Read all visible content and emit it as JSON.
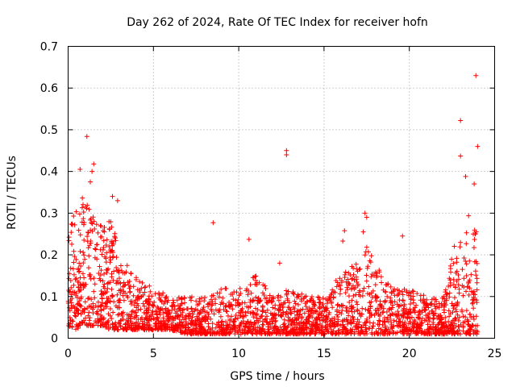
{
  "chart_data": {
    "type": "scatter",
    "title": "Day 262 of 2024, Rate Of TEC Index for receiver hofn",
    "xlabel": "GPS time / hours",
    "ylabel": "ROTI / TECUs",
    "xlim": [
      0,
      25
    ],
    "ylim": [
      0,
      0.7
    ],
    "xticks": [
      "0",
      "5",
      "10",
      "15",
      "20",
      "25"
    ],
    "yticks": [
      "0",
      "0.1",
      "0.2",
      "0.3",
      "0.4",
      "0.5",
      "0.6",
      "0.7"
    ],
    "grid": true,
    "marker": "+",
    "marker_color": "#ff0000",
    "series": [
      {
        "name": "ROTI",
        "note": "dense cloud of several thousand points; typical (x hours, ROTI) envelope and notable outliers",
        "envelope": [
          {
            "x": 0.0,
            "low": 0.03,
            "high": 0.25
          },
          {
            "x": 0.5,
            "low": 0.02,
            "high": 0.32
          },
          {
            "x": 1.0,
            "low": 0.03,
            "high": 0.35
          },
          {
            "x": 1.5,
            "low": 0.03,
            "high": 0.3
          },
          {
            "x": 2.0,
            "low": 0.03,
            "high": 0.28
          },
          {
            "x": 2.5,
            "low": 0.02,
            "high": 0.3
          },
          {
            "x": 3.0,
            "low": 0.02,
            "high": 0.2
          },
          {
            "x": 4.0,
            "low": 0.02,
            "high": 0.15
          },
          {
            "x": 5.0,
            "low": 0.02,
            "high": 0.12
          },
          {
            "x": 6.0,
            "low": 0.02,
            "high": 0.1
          },
          {
            "x": 7.0,
            "low": 0.01,
            "high": 0.1
          },
          {
            "x": 8.0,
            "low": 0.01,
            "high": 0.1
          },
          {
            "x": 9.0,
            "low": 0.01,
            "high": 0.12
          },
          {
            "x": 10.0,
            "low": 0.01,
            "high": 0.12
          },
          {
            "x": 11.0,
            "low": 0.01,
            "high": 0.16
          },
          {
            "x": 12.0,
            "low": 0.01,
            "high": 0.1
          },
          {
            "x": 13.0,
            "low": 0.01,
            "high": 0.12
          },
          {
            "x": 14.0,
            "low": 0.01,
            "high": 0.1
          },
          {
            "x": 15.0,
            "low": 0.01,
            "high": 0.1
          },
          {
            "x": 16.0,
            "low": 0.01,
            "high": 0.16
          },
          {
            "x": 17.0,
            "low": 0.01,
            "high": 0.18
          },
          {
            "x": 17.5,
            "low": 0.01,
            "high": 0.22
          },
          {
            "x": 18.0,
            "low": 0.01,
            "high": 0.18
          },
          {
            "x": 19.0,
            "low": 0.01,
            "high": 0.12
          },
          {
            "x": 20.0,
            "low": 0.01,
            "high": 0.12
          },
          {
            "x": 21.0,
            "low": 0.01,
            "high": 0.1
          },
          {
            "x": 22.0,
            "low": 0.01,
            "high": 0.1
          },
          {
            "x": 22.5,
            "low": 0.01,
            "high": 0.2
          },
          {
            "x": 23.0,
            "low": 0.01,
            "high": 0.3
          },
          {
            "x": 23.5,
            "low": 0.01,
            "high": 0.3
          },
          {
            "x": 24.0,
            "low": 0.01,
            "high": 0.25
          }
        ],
        "outliers": [
          {
            "x": 1.1,
            "y": 0.484
          },
          {
            "x": 0.7,
            "y": 0.405
          },
          {
            "x": 1.5,
            "y": 0.418
          },
          {
            "x": 1.4,
            "y": 0.4
          },
          {
            "x": 1.3,
            "y": 0.375
          },
          {
            "x": 2.6,
            "y": 0.34
          },
          {
            "x": 2.9,
            "y": 0.33
          },
          {
            "x": 8.5,
            "y": 0.277
          },
          {
            "x": 10.6,
            "y": 0.237
          },
          {
            "x": 12.8,
            "y": 0.45
          },
          {
            "x": 12.8,
            "y": 0.44
          },
          {
            "x": 12.4,
            "y": 0.18
          },
          {
            "x": 16.2,
            "y": 0.258
          },
          {
            "x": 16.1,
            "y": 0.233
          },
          {
            "x": 17.4,
            "y": 0.3
          },
          {
            "x": 17.5,
            "y": 0.29
          },
          {
            "x": 17.3,
            "y": 0.255
          },
          {
            "x": 19.6,
            "y": 0.245
          },
          {
            "x": 23.0,
            "y": 0.522
          },
          {
            "x": 23.0,
            "y": 0.437
          },
          {
            "x": 23.3,
            "y": 0.388
          },
          {
            "x": 23.9,
            "y": 0.63
          },
          {
            "x": 24.0,
            "y": 0.46
          },
          {
            "x": 23.8,
            "y": 0.37
          }
        ]
      }
    ]
  }
}
